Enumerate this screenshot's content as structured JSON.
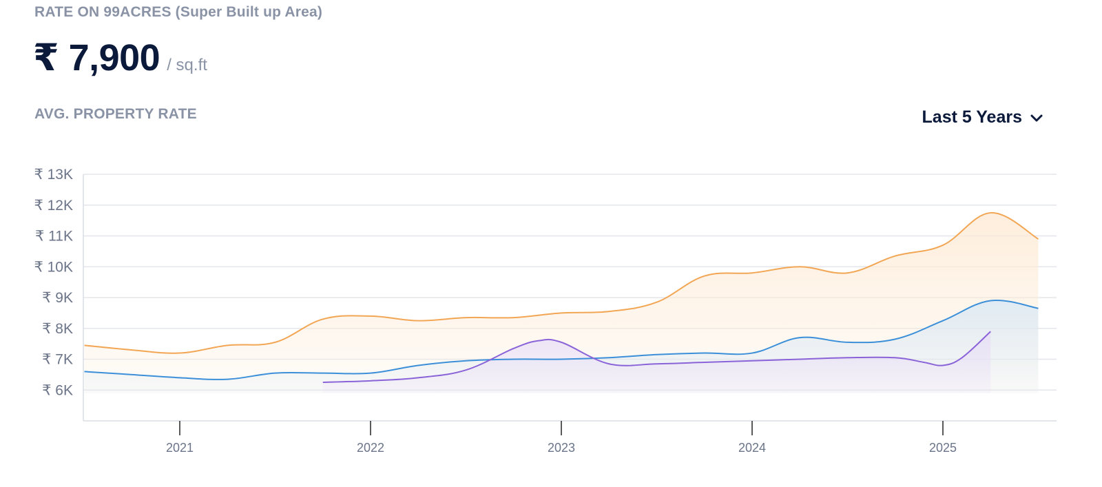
{
  "header": {
    "rate_label": "RATE ON 99ACRES (Super Built up Area)",
    "price": "₹ 7,900",
    "unit": "/ sq.ft",
    "avg_label": "AVG. PROPERTY RATE",
    "range_selected": "Last 5 Years",
    "range_icon": "chevron-down-icon"
  },
  "chart_data": {
    "type": "area",
    "title": "",
    "xlabel": "",
    "ylabel": "",
    "ylim": [
      5000,
      13000
    ],
    "y_ticks": [
      6000,
      7000,
      8000,
      9000,
      10000,
      11000,
      12000,
      13000
    ],
    "y_tick_labels": [
      "₹ 6K",
      "₹ 7K",
      "₹ 8K",
      "₹ 9K",
      "₹ 10K",
      "₹ 11K",
      "₹ 12K",
      "₹ 13K"
    ],
    "xlim": [
      2020.5,
      2025.6
    ],
    "x_ticks": [
      2021,
      2022,
      2023,
      2024,
      2025
    ],
    "x_tick_labels": [
      "2021",
      "2022",
      "2023",
      "2024",
      "2025"
    ],
    "grid": true,
    "series": [
      {
        "color": "#f2a654",
        "fill": "#fdebd6",
        "x": [
          2020.5,
          2020.75,
          2021.0,
          2021.25,
          2021.5,
          2021.75,
          2022.0,
          2022.25,
          2022.5,
          2022.75,
          2023.0,
          2023.25,
          2023.5,
          2023.75,
          2024.0,
          2024.25,
          2024.5,
          2024.75,
          2025.0,
          2025.25,
          2025.5
        ],
        "y": [
          7450,
          7300,
          7200,
          7450,
          7550,
          8300,
          8400,
          8250,
          8350,
          8350,
          8500,
          8550,
          8850,
          9700,
          9800,
          10000,
          9800,
          10350,
          10700,
          11750,
          10900
        ]
      },
      {
        "color": "#3b8fd9",
        "fill": "#dbe9f5",
        "x": [
          2020.5,
          2020.75,
          2021.0,
          2021.25,
          2021.5,
          2021.75,
          2022.0,
          2022.25,
          2022.5,
          2022.75,
          2023.0,
          2023.25,
          2023.5,
          2023.75,
          2024.0,
          2024.25,
          2024.5,
          2024.75,
          2025.0,
          2025.25,
          2025.5
        ],
        "y": [
          6600,
          6500,
          6400,
          6350,
          6550,
          6550,
          6550,
          6800,
          6950,
          7000,
          7000,
          7050,
          7150,
          7200,
          7200,
          7700,
          7550,
          7650,
          8250,
          8900,
          8650
        ]
      },
      {
        "color": "#8a63d8",
        "fill": "#e8def8",
        "x": [
          2021.75,
          2022.0,
          2022.25,
          2022.5,
          2022.75,
          2022.88,
          2023.0,
          2023.25,
          2023.5,
          2023.75,
          2024.0,
          2024.25,
          2024.5,
          2024.75,
          2024.9,
          2025.0,
          2025.1,
          2025.25
        ],
        "y": [
          6250,
          6300,
          6400,
          6650,
          7350,
          7600,
          7550,
          6850,
          6850,
          6900,
          6950,
          7000,
          7050,
          7050,
          6900,
          6800,
          7050,
          7900
        ]
      }
    ]
  }
}
